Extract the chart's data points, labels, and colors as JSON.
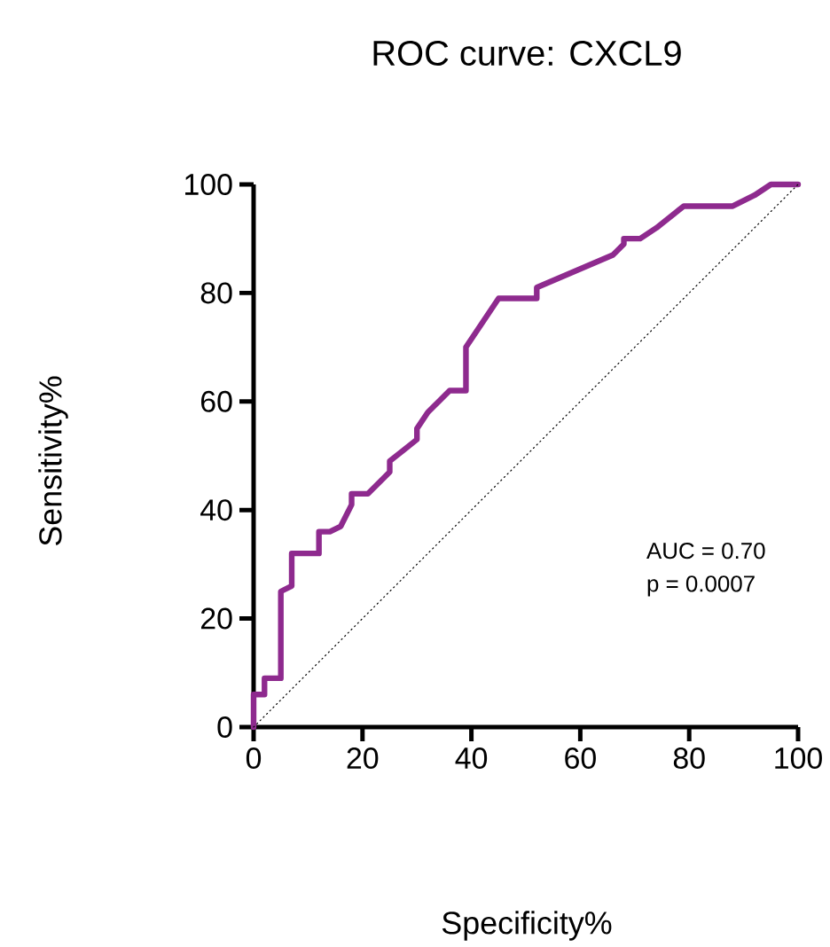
{
  "chart_data": {
    "type": "line",
    "title": "ROC curve: CXCL9",
    "xlabel": "Specificity%",
    "ylabel": "Sensitivity%",
    "xlim": [
      0,
      100
    ],
    "ylim": [
      0,
      100
    ],
    "xticks": [
      0,
      20,
      40,
      60,
      80,
      100
    ],
    "yticks": [
      0,
      20,
      40,
      60,
      80,
      100
    ],
    "marker": "none",
    "annotations": [
      "AUC = 0.70",
      "p = 0.0007"
    ],
    "series": [
      {
        "color": "#8e2a8e",
        "line_style": "solid",
        "x": [
          0,
          0,
          2,
          2,
          5,
          5,
          7,
          7,
          12,
          12,
          14,
          16,
          18,
          18,
          21,
          25,
          25,
          30,
          30,
          32,
          36,
          39,
          39,
          45,
          52,
          52,
          66,
          68,
          68,
          71,
          74,
          79,
          88,
          92,
          95,
          100
        ],
        "values": [
          0,
          6,
          6,
          9,
          9,
          25,
          26,
          32,
          32,
          36,
          36,
          37,
          41,
          43,
          43,
          47,
          49,
          53,
          55,
          58,
          62,
          62,
          70,
          79,
          79,
          81,
          87,
          89,
          90,
          90,
          92,
          96,
          96,
          98,
          100,
          100
        ]
      },
      {
        "color": "#000000",
        "line_style": "dotted",
        "x": [
          0,
          100
        ],
        "values": [
          0,
          100
        ]
      }
    ]
  }
}
